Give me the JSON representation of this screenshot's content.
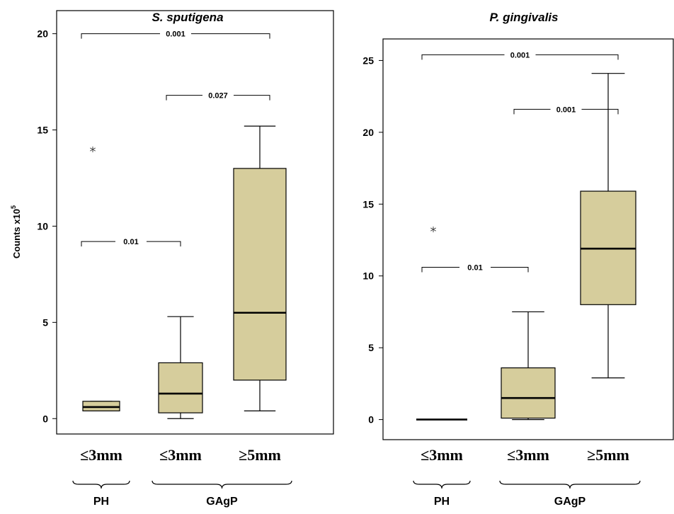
{
  "colors": {
    "box_fill": "#d6cd9c",
    "stroke": "#000000",
    "outlier": "#444444"
  },
  "chart_data": [
    {
      "type": "box",
      "title": "S. sputigena",
      "ylabel": "Counts x10",
      "ylabel_superscript": "5",
      "ylim": [
        -0.8,
        21.2
      ],
      "yticks": [
        "0",
        "5",
        "10",
        "15",
        "20"
      ],
      "categories": [
        "≤3mm",
        "≤3mm",
        "≥5mm"
      ],
      "boxes": [
        {
          "category": "≤3mm",
          "min": 0.4,
          "q1": 0.4,
          "median": 0.6,
          "q3": 0.9,
          "max": 0.9,
          "outliers": [
            14.1
          ]
        },
        {
          "category": "≤3mm",
          "min": 0.0,
          "q1": 0.3,
          "median": 1.3,
          "q3": 2.9,
          "max": 5.3,
          "outliers": []
        },
        {
          "category": "≥5mm",
          "min": 0.4,
          "q1": 2.0,
          "median": 5.5,
          "q3": 13.0,
          "max": 15.2,
          "outliers": []
        }
      ],
      "comparisons": [
        {
          "from": 0,
          "to": 2,
          "p": "0.001",
          "y": 20.0
        },
        {
          "from": 1,
          "to": 2,
          "p": "0.027",
          "y": 16.8
        },
        {
          "from": 0,
          "to": 1,
          "p": "0.01",
          "y": 9.2
        }
      ],
      "groups": [
        {
          "label": "PH",
          "categories": [
            0
          ]
        },
        {
          "label": "GAgP",
          "categories": [
            1,
            2
          ]
        }
      ]
    },
    {
      "type": "box",
      "title": "P. gingivalis",
      "ylabel": "",
      "ylim": [
        -1.4,
        26.5
      ],
      "yticks": [
        "0",
        "5",
        "10",
        "15",
        "20",
        "25"
      ],
      "categories": [
        "≤3mm",
        "≤3mm",
        "≥5mm"
      ],
      "boxes": [
        {
          "category": "≤3mm",
          "min": 0.0,
          "q1": 0.0,
          "median": 0.0,
          "q3": 0.0,
          "max": 0.0,
          "outliers": [
            13.4
          ]
        },
        {
          "category": "≤3mm",
          "min": 0.0,
          "q1": 0.1,
          "median": 1.5,
          "q3": 3.6,
          "max": 7.5,
          "outliers": []
        },
        {
          "category": "≥5mm",
          "min": 2.9,
          "q1": 8.0,
          "median": 11.9,
          "q3": 15.9,
          "max": 24.1,
          "outliers": []
        }
      ],
      "comparisons": [
        {
          "from": 0,
          "to": 2,
          "p": "0.001",
          "y": 25.4
        },
        {
          "from": 1,
          "to": 2,
          "p": "0.001",
          "y": 21.6
        },
        {
          "from": 0,
          "to": 1,
          "p": "0.01",
          "y": 10.6
        }
      ],
      "groups": [
        {
          "label": "PH",
          "categories": [
            0
          ]
        },
        {
          "label": "GAgP",
          "categories": [
            1,
            2
          ]
        }
      ]
    }
  ]
}
